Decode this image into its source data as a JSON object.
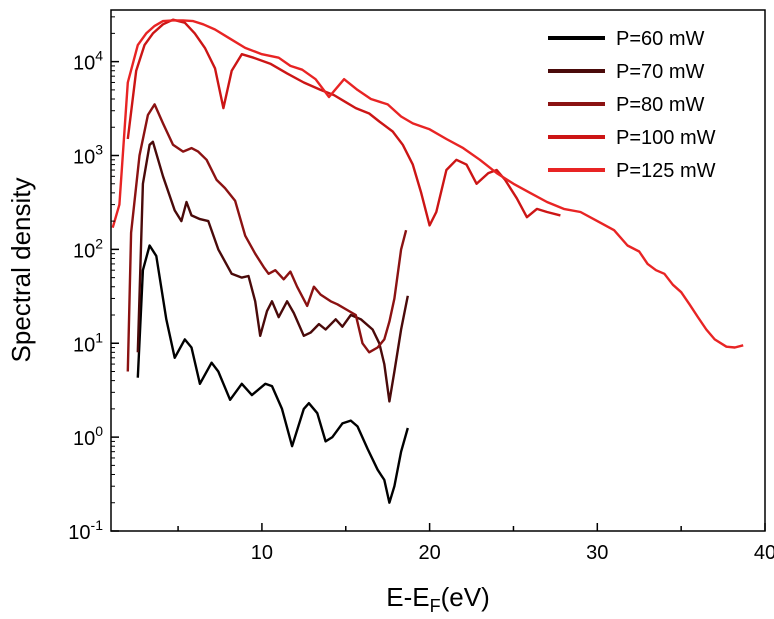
{
  "chart_data": {
    "type": "line",
    "xscale": "linear",
    "yscale": "log",
    "xlabel_main": "E-E",
    "xlabel_sub": "F",
    "xlabel_tail": "(eV)",
    "ylabel": "Spectral density",
    "xlim": [
      1,
      40
    ],
    "ylim_exp": [
      -1,
      4.55
    ],
    "x_ticks": [
      {
        "value": 10,
        "label": "10"
      },
      {
        "value": 20,
        "label": "20"
      },
      {
        "value": 30,
        "label": "30"
      },
      {
        "value": 40,
        "label": "40"
      }
    ],
    "y_ticks": [
      {
        "exp": -1,
        "base": "10",
        "sup": "-1"
      },
      {
        "exp": 0,
        "base": "10",
        "sup": "0"
      },
      {
        "exp": 1,
        "base": "10",
        "sup": "1"
      },
      {
        "exp": 2,
        "base": "10",
        "sup": "2"
      },
      {
        "exp": 3,
        "base": "10",
        "sup": "3"
      },
      {
        "exp": 4,
        "base": "10",
        "sup": "4"
      }
    ],
    "legend_position": "top-right",
    "series": [
      {
        "name": "P=60 mW",
        "color": "#000000",
        "points": [
          [
            2.6,
            4.3
          ],
          [
            2.9,
            60
          ],
          [
            3.3,
            110
          ],
          [
            3.7,
            85
          ],
          [
            4.3,
            18
          ],
          [
            4.8,
            7
          ],
          [
            5.4,
            11
          ],
          [
            5.8,
            9
          ],
          [
            6.3,
            3.7
          ],
          [
            7.0,
            6.2
          ],
          [
            7.4,
            5
          ],
          [
            8.1,
            2.5
          ],
          [
            8.8,
            3.7
          ],
          [
            9.4,
            2.8
          ],
          [
            10.2,
            3.7
          ],
          [
            10.6,
            3.5
          ],
          [
            11.2,
            2
          ],
          [
            11.8,
            0.8
          ],
          [
            12.5,
            2
          ],
          [
            12.8,
            2.3
          ],
          [
            13.3,
            1.8
          ],
          [
            13.8,
            0.9
          ],
          [
            14.2,
            1
          ],
          [
            14.8,
            1.4
          ],
          [
            15.3,
            1.5
          ],
          [
            15.7,
            1.3
          ],
          [
            16.3,
            0.75
          ],
          [
            16.9,
            0.45
          ],
          [
            17.3,
            0.35
          ],
          [
            17.6,
            0.2
          ],
          [
            17.9,
            0.3
          ],
          [
            18.3,
            0.7
          ],
          [
            18.7,
            1.25
          ]
        ]
      },
      {
        "name": "P=70 mW",
        "color": "#4a0a0a",
        "points": [
          [
            2.6,
            8
          ],
          [
            2.9,
            500
          ],
          [
            3.3,
            1300
          ],
          [
            3.5,
            1400
          ],
          [
            4.1,
            600
          ],
          [
            4.8,
            260
          ],
          [
            5.2,
            200
          ],
          [
            5.5,
            320
          ],
          [
            5.8,
            230
          ],
          [
            6.3,
            210
          ],
          [
            6.8,
            200
          ],
          [
            7.4,
            100
          ],
          [
            8.2,
            55
          ],
          [
            8.8,
            50
          ],
          [
            9.2,
            52
          ],
          [
            9.6,
            28
          ],
          [
            9.9,
            12
          ],
          [
            10.3,
            22
          ],
          [
            10.6,
            28
          ],
          [
            11.0,
            19
          ],
          [
            11.5,
            28
          ],
          [
            11.9,
            21
          ],
          [
            12.5,
            12
          ],
          [
            12.9,
            13
          ],
          [
            13.4,
            16
          ],
          [
            13.8,
            14
          ],
          [
            14.4,
            18
          ],
          [
            14.8,
            15
          ],
          [
            15.3,
            20
          ],
          [
            15.9,
            18
          ],
          [
            16.6,
            14
          ],
          [
            17.0,
            10
          ],
          [
            17.3,
            6
          ],
          [
            17.6,
            2.4
          ],
          [
            17.9,
            5
          ],
          [
            18.3,
            14
          ],
          [
            18.7,
            32
          ]
        ]
      },
      {
        "name": "P=80 mW",
        "color": "#8b1212",
        "points": [
          [
            2.0,
            5
          ],
          [
            2.2,
            150
          ],
          [
            2.7,
            1000
          ],
          [
            3.2,
            2700
          ],
          [
            3.6,
            3500
          ],
          [
            4.1,
            2200
          ],
          [
            4.7,
            1300
          ],
          [
            5.3,
            1100
          ],
          [
            5.8,
            1200
          ],
          [
            6.2,
            1100
          ],
          [
            6.7,
            900
          ],
          [
            7.3,
            550
          ],
          [
            7.8,
            450
          ],
          [
            8.4,
            330
          ],
          [
            9.0,
            140
          ],
          [
            9.6,
            90
          ],
          [
            10.1,
            65
          ],
          [
            10.4,
            55
          ],
          [
            10.8,
            60
          ],
          [
            11.3,
            48
          ],
          [
            11.7,
            58
          ],
          [
            12.1,
            40
          ],
          [
            12.7,
            25
          ],
          [
            13.1,
            40
          ],
          [
            13.5,
            33
          ],
          [
            14.1,
            28
          ],
          [
            14.5,
            26
          ],
          [
            15.2,
            22
          ],
          [
            15.6,
            20
          ],
          [
            16.0,
            10
          ],
          [
            16.4,
            8
          ],
          [
            16.9,
            9
          ],
          [
            17.3,
            11
          ],
          [
            17.6,
            17
          ],
          [
            17.9,
            30
          ],
          [
            18.3,
            100
          ],
          [
            18.6,
            160
          ]
        ]
      },
      {
        "name": "P=100 mW",
        "color": "#cc1515",
        "points": [
          [
            2.0,
            1500
          ],
          [
            2.5,
            8000
          ],
          [
            3.0,
            15000
          ],
          [
            3.5,
            20000
          ],
          [
            4.1,
            25000
          ],
          [
            4.7,
            28000
          ],
          [
            5.4,
            26000
          ],
          [
            6.0,
            20000
          ],
          [
            6.6,
            14000
          ],
          [
            7.2,
            8500
          ],
          [
            7.7,
            3200
          ],
          [
            8.2,
            8000
          ],
          [
            8.8,
            12000
          ],
          [
            9.5,
            11000
          ],
          [
            10.5,
            9500
          ],
          [
            11.5,
            7500
          ],
          [
            12.5,
            6000
          ],
          [
            13.5,
            5000
          ],
          [
            14.3,
            4400
          ],
          [
            15.0,
            3700
          ],
          [
            15.6,
            3200
          ],
          [
            16.4,
            2800
          ],
          [
            17.0,
            2300
          ],
          [
            17.8,
            1800
          ],
          [
            18.4,
            1300
          ],
          [
            19.0,
            800
          ],
          [
            19.5,
            400
          ],
          [
            20.0,
            180
          ],
          [
            20.4,
            250
          ],
          [
            21.0,
            700
          ],
          [
            21.6,
            900
          ],
          [
            22.2,
            800
          ],
          [
            22.8,
            500
          ],
          [
            23.5,
            650
          ],
          [
            24.0,
            700
          ],
          [
            24.5,
            550
          ],
          [
            25.2,
            350
          ],
          [
            25.8,
            220
          ],
          [
            26.4,
            270
          ],
          [
            27.0,
            250
          ],
          [
            27.8,
            230
          ]
        ]
      },
      {
        "name": "P=125 mW",
        "color": "#e82424",
        "points": [
          [
            1.1,
            170
          ],
          [
            1.5,
            300
          ],
          [
            2.0,
            6000
          ],
          [
            2.6,
            15000
          ],
          [
            3.1,
            20000
          ],
          [
            3.6,
            24000
          ],
          [
            4.1,
            27000
          ],
          [
            4.7,
            27500
          ],
          [
            5.3,
            27500
          ],
          [
            5.9,
            27000
          ],
          [
            6.5,
            25000
          ],
          [
            7.2,
            22000
          ],
          [
            8.0,
            18000
          ],
          [
            9.0,
            14000
          ],
          [
            10.0,
            12000
          ],
          [
            11.0,
            11000
          ],
          [
            11.7,
            9000
          ],
          [
            12.4,
            8200
          ],
          [
            13.2,
            6500
          ],
          [
            14.0,
            4200
          ],
          [
            14.9,
            6500
          ],
          [
            15.7,
            5000
          ],
          [
            16.5,
            4000
          ],
          [
            17.5,
            3500
          ],
          [
            18.3,
            2600
          ],
          [
            19.0,
            2200
          ],
          [
            20.0,
            1900
          ],
          [
            21.0,
            1500
          ],
          [
            22.0,
            1200
          ],
          [
            23.0,
            900
          ],
          [
            24.0,
            650
          ],
          [
            25.0,
            500
          ],
          [
            26.0,
            400
          ],
          [
            27.0,
            320
          ],
          [
            28.0,
            270
          ],
          [
            29.0,
            250
          ],
          [
            30.0,
            200
          ],
          [
            31.0,
            160
          ],
          [
            31.8,
            110
          ],
          [
            32.5,
            95
          ],
          [
            33.0,
            70
          ],
          [
            33.5,
            60
          ],
          [
            34.0,
            55
          ],
          [
            34.5,
            42
          ],
          [
            35.0,
            35
          ],
          [
            35.5,
            26
          ],
          [
            36.0,
            19
          ],
          [
            36.5,
            14
          ],
          [
            37.0,
            11
          ],
          [
            37.7,
            9.2
          ],
          [
            38.2,
            9
          ],
          [
            38.7,
            9.5
          ]
        ]
      }
    ]
  }
}
